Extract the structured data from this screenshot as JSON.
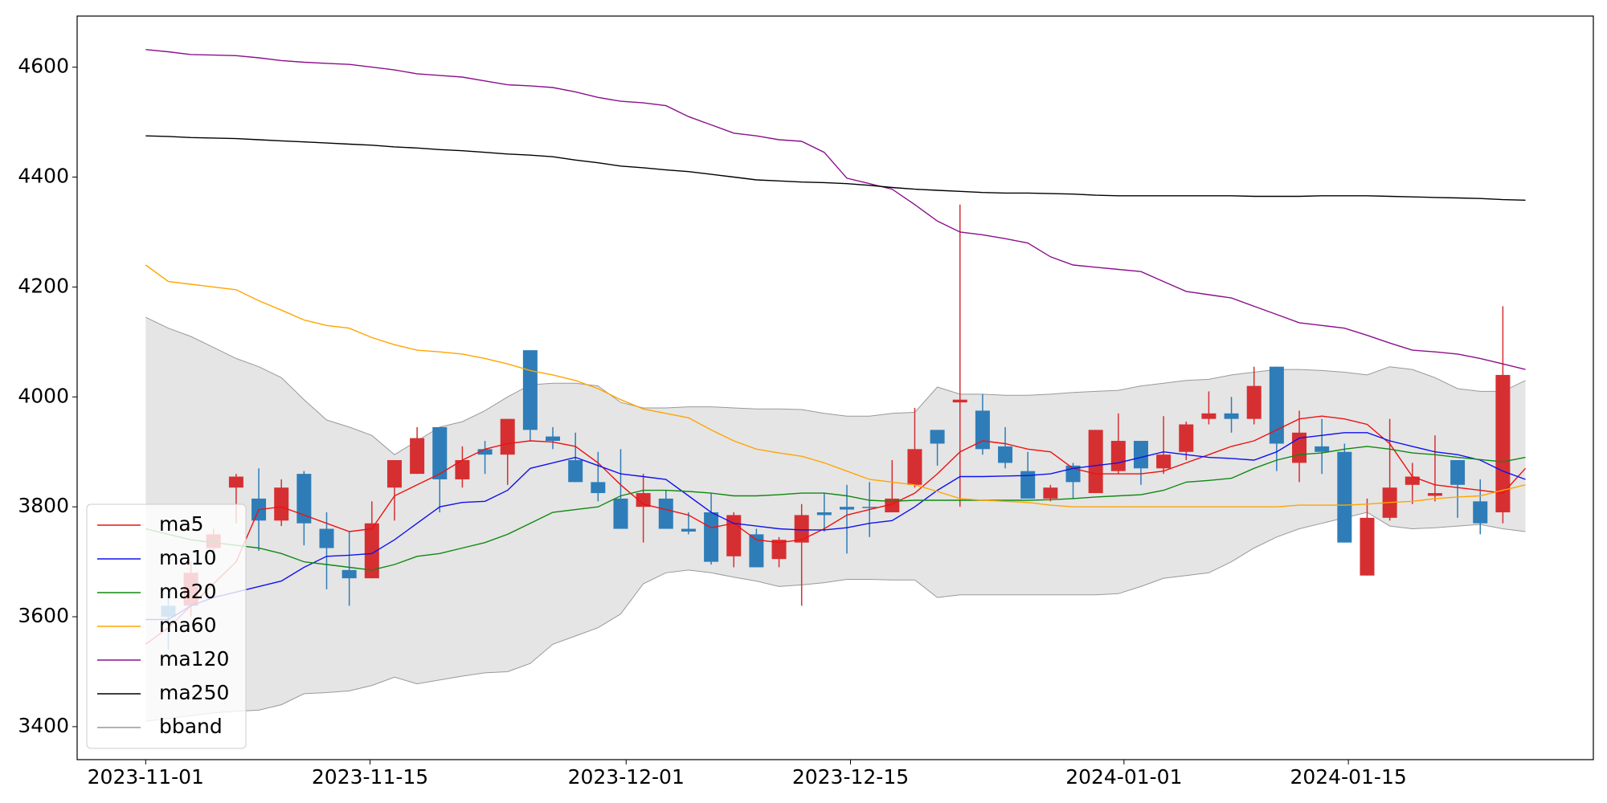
{
  "chart_data": {
    "type": "candlestick",
    "x": [
      0,
      1,
      2,
      3,
      4,
      5,
      6,
      7,
      8,
      9,
      10,
      11,
      12,
      13,
      14,
      15,
      16,
      17,
      18,
      19,
      20,
      21,
      22,
      23,
      24,
      25,
      26,
      27,
      28,
      29,
      30,
      31,
      32,
      33,
      34,
      35,
      36,
      37,
      38,
      39,
      40,
      41,
      42,
      43,
      44,
      45,
      46,
      47,
      48,
      49,
      50,
      51,
      52,
      53,
      54,
      55,
      56,
      57,
      58,
      59,
      60,
      61
    ],
    "open": [
      null,
      3620,
      3620,
      3725,
      3835,
      3815,
      3775,
      3860,
      3760,
      3685,
      3670,
      3835,
      3860,
      3945,
      3850,
      3905,
      3895,
      4085,
      3928,
      3885,
      3845,
      3815,
      3800,
      3815,
      3760,
      3790,
      3710,
      3750,
      3705,
      3735,
      3790,
      3800,
      3800,
      3790,
      3840,
      3940,
      3990,
      3975,
      3910,
      3865,
      3815,
      3875,
      3825,
      3865,
      3920,
      3870,
      3900,
      3960,
      3970,
      3960,
      4055,
      3880,
      3910,
      3900,
      3675,
      3780,
      3840,
      3820,
      3885,
      3810,
      3790,
      null
    ],
    "high": [
      null,
      3640,
      3700,
      3760,
      3860,
      3870,
      3850,
      3865,
      3790,
      3755,
      3810,
      3885,
      3945,
      3945,
      3910,
      3920,
      3960,
      4085,
      3945,
      3935,
      3900,
      3905,
      3860,
      3830,
      3790,
      3825,
      3790,
      3760,
      3745,
      3805,
      3825,
      3840,
      3845,
      3885,
      3980,
      3940,
      4350,
      4005,
      3945,
      3900,
      3840,
      3880,
      3940,
      3970,
      3920,
      3965,
      3955,
      4010,
      4000,
      4055,
      4055,
      3975,
      3960,
      3915,
      3815,
      3960,
      3880,
      3930,
      3885,
      3850,
      4165,
      null
    ],
    "low": [
      null,
      3540,
      3600,
      3700,
      3770,
      3720,
      3765,
      3730,
      3650,
      3620,
      3670,
      3775,
      3860,
      3790,
      3835,
      3860,
      3840,
      3920,
      3905,
      3845,
      3810,
      3760,
      3735,
      3760,
      3750,
      3695,
      3690,
      3690,
      3690,
      3620,
      3755,
      3715,
      3745,
      3790,
      3835,
      3875,
      3800,
      3895,
      3870,
      3815,
      3810,
      3815,
      3825,
      3860,
      3840,
      3860,
      3885,
      3950,
      3935,
      3950,
      3865,
      3845,
      3860,
      3735,
      3675,
      3775,
      3805,
      3810,
      3780,
      3750,
      3770,
      null
    ],
    "close": [
      null,
      3600,
      3680,
      3750,
      3855,
      3775,
      3835,
      3770,
      3725,
      3670,
      3770,
      3885,
      3925,
      3850,
      3885,
      3895,
      3960,
      3940,
      3920,
      3845,
      3825,
      3760,
      3825,
      3760,
      3755,
      3700,
      3785,
      3690,
      3740,
      3785,
      3785,
      3795,
      3798,
      3815,
      3905,
      3915,
      3995,
      3905,
      3880,
      3815,
      3835,
      3845,
      3940,
      3920,
      3870,
      3895,
      3950,
      3970,
      3960,
      4020,
      3915,
      3935,
      3900,
      3735,
      3780,
      3835,
      3855,
      3825,
      3840,
      3770,
      4040,
      null
    ],
    "up_color": "#d62f32",
    "down_color": "#2e7db8",
    "series": [
      {
        "name": "ma5",
        "color": "#ee1111",
        "values": [
          3550,
          3580,
          3620,
          3660,
          3700,
          3795,
          3800,
          3785,
          3770,
          3755,
          3760,
          3820,
          3840,
          3860,
          3885,
          3905,
          3915,
          3920,
          3918,
          3910,
          3880,
          3840,
          3805,
          3795,
          3785,
          3762,
          3770,
          3740,
          3735,
          3740,
          3760,
          3785,
          3795,
          3805,
          3825,
          3860,
          3900,
          3920,
          3915,
          3905,
          3900,
          3870,
          3860,
          3860,
          3860,
          3865,
          3880,
          3895,
          3910,
          3920,
          3940,
          3960,
          3965,
          3960,
          3950,
          3915,
          3855,
          3840,
          3835,
          3830,
          3825,
          3870
        ]
      },
      {
        "name": "ma10",
        "color": "#1111ee",
        "values": [
          3595,
          3595,
          3620,
          3635,
          3645,
          3655,
          3665,
          3690,
          3710,
          3712,
          3715,
          3740,
          3770,
          3800,
          3808,
          3810,
          3830,
          3870,
          3880,
          3890,
          3875,
          3860,
          3855,
          3850,
          3820,
          3790,
          3770,
          3765,
          3760,
          3758,
          3758,
          3762,
          3770,
          3775,
          3800,
          3830,
          3855,
          3855,
          3856,
          3857,
          3860,
          3870,
          3875,
          3880,
          3890,
          3900,
          3895,
          3890,
          3888,
          3885,
          3900,
          3925,
          3930,
          3935,
          3935,
          3920,
          3910,
          3900,
          3895,
          3885,
          3865,
          3850
        ]
      },
      {
        "name": "ma20",
        "color": "#118811",
        "values": [
          3760,
          3750,
          3740,
          3735,
          3730,
          3725,
          3715,
          3700,
          3695,
          3690,
          3685,
          3695,
          3710,
          3715,
          3725,
          3735,
          3750,
          3770,
          3790,
          3795,
          3800,
          3820,
          3830,
          3830,
          3828,
          3825,
          3820,
          3820,
          3822,
          3825,
          3825,
          3820,
          3812,
          3810,
          3812,
          3812,
          3812,
          3812,
          3812,
          3812,
          3813,
          3815,
          3818,
          3820,
          3822,
          3830,
          3845,
          3848,
          3852,
          3870,
          3885,
          3895,
          3898,
          3905,
          3910,
          3905,
          3898,
          3895,
          3890,
          3886,
          3882,
          3890
        ]
      },
      {
        "name": "ma60",
        "color": "#ffa500",
        "values": [
          4240,
          4210,
          4205,
          4200,
          4195,
          4175,
          4158,
          4140,
          4130,
          4125,
          4108,
          4095,
          4085,
          4082,
          4078,
          4070,
          4060,
          4048,
          4040,
          4030,
          4015,
          3995,
          3978,
          3970,
          3962,
          3940,
          3920,
          3905,
          3898,
          3892,
          3880,
          3865,
          3850,
          3845,
          3840,
          3828,
          3815,
          3812,
          3810,
          3808,
          3803,
          3800,
          3800,
          3800,
          3800,
          3800,
          3800,
          3800,
          3800,
          3800,
          3800,
          3803,
          3803,
          3803,
          3805,
          3808,
          3810,
          3815,
          3818,
          3820,
          3830,
          3840
        ]
      },
      {
        "name": "ma120",
        "color": "#8b108b",
        "values": [
          4632,
          4628,
          4623,
          4622,
          4621,
          4617,
          4612,
          4609,
          4607,
          4605,
          4600,
          4595,
          4588,
          4585,
          4582,
          4575,
          4568,
          4566,
          4563,
          4555,
          4545,
          4538,
          4535,
          4530,
          4510,
          4495,
          4480,
          4475,
          4468,
          4465,
          4445,
          4398,
          4388,
          4378,
          4350,
          4320,
          4300,
          4295,
          4288,
          4280,
          4255,
          4240,
          4236,
          4232,
          4228,
          4210,
          4192,
          4186,
          4180,
          4165,
          4150,
          4135,
          4130,
          4125,
          4112,
          4098,
          4085,
          4082,
          4078,
          4070,
          4060,
          4050
        ]
      },
      {
        "name": "ma250",
        "color": "#000000",
        "values": [
          4475,
          4474,
          4472,
          4471,
          4470,
          4468,
          4466,
          4464,
          4462,
          4460,
          4458,
          4455,
          4453,
          4450,
          4448,
          4445,
          4442,
          4440,
          4437,
          4431,
          4426,
          4420,
          4417,
          4413,
          4410,
          4405,
          4400,
          4395,
          4393,
          4391,
          4390,
          4388,
          4385,
          4381,
          4378,
          4376,
          4374,
          4372,
          4371,
          4371,
          4370,
          4369,
          4367,
          4366,
          4366,
          4366,
          4366,
          4366,
          4366,
          4365,
          4365,
          4365,
          4366,
          4366,
          4366,
          4365,
          4364,
          4363,
          4362,
          4361,
          4359,
          4358
        ]
      }
    ],
    "bands": {
      "name": "bband",
      "color": "#999999",
      "fill": "#e5e5e5",
      "upper": [
        4145,
        4125,
        4110,
        4090,
        4070,
        4055,
        4035,
        3995,
        3958,
        3945,
        3930,
        3895,
        3920,
        3945,
        3955,
        3975,
        4000,
        4022,
        4025,
        4025,
        4020,
        3990,
        3980,
        3980,
        3982,
        3982,
        3980,
        3978,
        3978,
        3977,
        3970,
        3965,
        3965,
        3970,
        3972,
        4018,
        4005,
        4005,
        4003,
        4003,
        4005,
        4008,
        4010,
        4012,
        4020,
        4025,
        4030,
        4032,
        4040,
        4045,
        4050,
        4050,
        4048,
        4045,
        4040,
        4055,
        4050,
        4035,
        4015,
        4010,
        4010,
        4030
      ],
      "lower": [
        3410,
        3415,
        3420,
        3425,
        3428,
        3430,
        3440,
        3460,
        3462,
        3465,
        3475,
        3490,
        3478,
        3485,
        3492,
        3498,
        3500,
        3515,
        3550,
        3565,
        3580,
        3605,
        3660,
        3680,
        3685,
        3680,
        3672,
        3665,
        3655,
        3658,
        3662,
        3668,
        3668,
        3667,
        3667,
        3635,
        3640,
        3640,
        3640,
        3640,
        3640,
        3640,
        3640,
        3642,
        3655,
        3670,
        3675,
        3680,
        3700,
        3725,
        3745,
        3760,
        3770,
        3780,
        3790,
        3765,
        3760,
        3762,
        3765,
        3768,
        3760,
        3755
      ]
    },
    "xlim": [
      -3.03,
      64.0
    ],
    "xticks": [
      {
        "value": 0,
        "label": "2023-11-01"
      },
      {
        "value": 9.92,
        "label": "2023-11-15"
      },
      {
        "value": 21.24,
        "label": "2023-12-01"
      },
      {
        "value": 31.16,
        "label": "2023-12-15"
      },
      {
        "value": 43.25,
        "label": "2024-01-01"
      },
      {
        "value": 53.17,
        "label": "2024-01-15"
      }
    ],
    "ylim": [
      3340,
      4693
    ],
    "yticks": [
      3400,
      3600,
      3800,
      4000,
      4200,
      4400,
      4600
    ],
    "legend": "lower left"
  }
}
